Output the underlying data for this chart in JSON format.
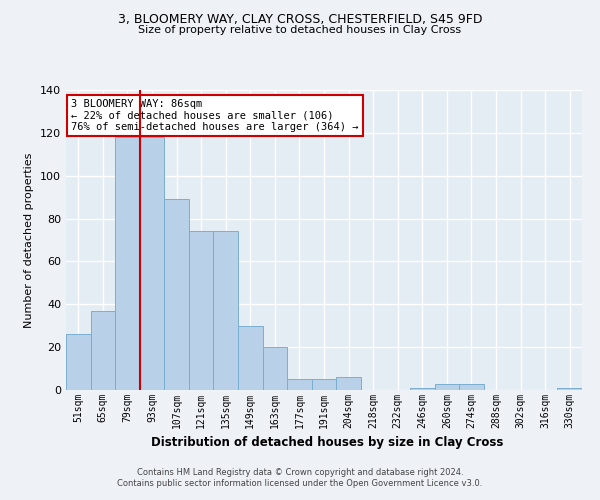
{
  "title_line1": "3, BLOOMERY WAY, CLAY CROSS, CHESTERFIELD, S45 9FD",
  "title_line2": "Size of property relative to detached houses in Clay Cross",
  "xlabel": "Distribution of detached houses by size in Clay Cross",
  "ylabel": "Number of detached properties",
  "categories": [
    "51sqm",
    "65sqm",
    "79sqm",
    "93sqm",
    "107sqm",
    "121sqm",
    "135sqm",
    "149sqm",
    "163sqm",
    "177sqm",
    "191sqm",
    "204sqm",
    "218sqm",
    "232sqm",
    "246sqm",
    "260sqm",
    "274sqm",
    "288sqm",
    "302sqm",
    "316sqm",
    "330sqm"
  ],
  "values": [
    26,
    37,
    118,
    118,
    89,
    74,
    74,
    30,
    20,
    5,
    5,
    6,
    0,
    0,
    1,
    3,
    3,
    0,
    0,
    0,
    1
  ],
  "bar_color": "#b8d0e8",
  "bar_edge_color": "#7aaed0",
  "property_line_x": 2.5,
  "annotation_line1": "3 BLOOMERY WAY: 86sqm",
  "annotation_line2": "← 22% of detached houses are smaller (106)",
  "annotation_line3": "76% of semi-detached houses are larger (364) →",
  "annotation_box_color": "#ffffff",
  "annotation_box_edge_color": "#cc0000",
  "line_color": "#cc0000",
  "footer_line1": "Contains HM Land Registry data © Crown copyright and database right 2024.",
  "footer_line2": "Contains public sector information licensed under the Open Government Licence v3.0.",
  "background_color": "#eef2f7",
  "plot_bg_color": "#e4ecf4",
  "grid_color": "#ffffff",
  "ylim": [
    0,
    140
  ],
  "yticks": [
    0,
    20,
    40,
    60,
    80,
    100,
    120,
    140
  ]
}
